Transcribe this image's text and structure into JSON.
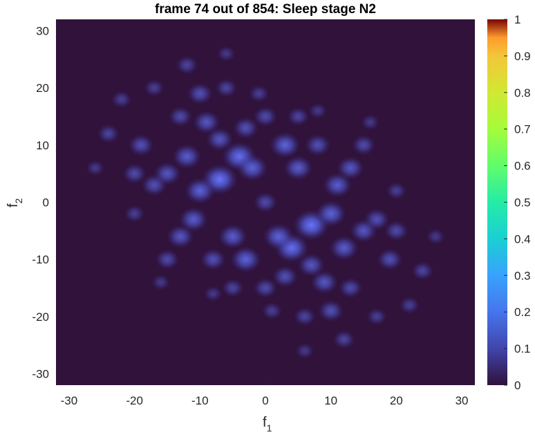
{
  "chart_data": {
    "type": "heatmap",
    "title": "frame 74 out of 854: Sleep stage N2",
    "xlabel": "f",
    "xlabel_subscript": "1",
    "ylabel": "f",
    "ylabel_subscript": "2",
    "xlim": [
      -32,
      32
    ],
    "ylim": [
      -32,
      32
    ],
    "xticks": [
      -30,
      -20,
      -10,
      0,
      10,
      20,
      30
    ],
    "yticks": [
      30,
      20,
      10,
      0,
      -10,
      -20,
      -30
    ],
    "xtick_labels": [
      "-30",
      "-20",
      "-10",
      "0",
      "10",
      "20",
      "30"
    ],
    "ytick_labels": [
      "30",
      "20",
      "10",
      "0",
      "-10",
      "-20",
      "-30"
    ],
    "colorbar": {
      "colormap": "turbo",
      "range": [
        0,
        1
      ],
      "ticks": [
        0,
        0.1,
        0.2,
        0.3,
        0.4,
        0.5,
        0.6,
        0.7,
        0.8,
        0.9,
        1
      ],
      "tick_labels": [
        "0",
        "0.1",
        "0.2",
        "0.3",
        "0.4",
        "0.5",
        "0.6",
        "0.7",
        "0.8",
        "0.9",
        "1"
      ]
    },
    "background_value": 0,
    "approx_peak_value": 0.13,
    "blobs": [
      {
        "x": -7,
        "y": 4,
        "value": 0.13
      },
      {
        "x": 7,
        "y": -4,
        "value": 0.13
      },
      {
        "x": -4,
        "y": 8,
        "value": 0.12
      },
      {
        "x": 4,
        "y": -8,
        "value": 0.12
      },
      {
        "x": 0,
        "y": 0,
        "value": 0.06
      },
      {
        "x": -2,
        "y": 6,
        "value": 0.1
      },
      {
        "x": 2,
        "y": -6,
        "value": 0.1
      },
      {
        "x": -10,
        "y": 2,
        "value": 0.1
      },
      {
        "x": 10,
        "y": -2,
        "value": 0.1
      },
      {
        "x": 3,
        "y": 10,
        "value": 0.1
      },
      {
        "x": -3,
        "y": -10,
        "value": 0.1
      },
      {
        "x": -12,
        "y": 8,
        "value": 0.09
      },
      {
        "x": 12,
        "y": -8,
        "value": 0.09
      },
      {
        "x": -11,
        "y": -3,
        "value": 0.09
      },
      {
        "x": 11,
        "y": 3,
        "value": 0.09
      },
      {
        "x": -5,
        "y": -6,
        "value": 0.09
      },
      {
        "x": 5,
        "y": 6,
        "value": 0.09
      },
      {
        "x": -9,
        "y": 14,
        "value": 0.08
      },
      {
        "x": 9,
        "y": -14,
        "value": 0.08
      },
      {
        "x": -15,
        "y": 5,
        "value": 0.08
      },
      {
        "x": 15,
        "y": -5,
        "value": 0.08
      },
      {
        "x": 13,
        "y": 6,
        "value": 0.08
      },
      {
        "x": -13,
        "y": -6,
        "value": 0.08
      },
      {
        "x": -7,
        "y": 11,
        "value": 0.08
      },
      {
        "x": 7,
        "y": -11,
        "value": 0.08
      },
      {
        "x": -3,
        "y": 13,
        "value": 0.07
      },
      {
        "x": 3,
        "y": -13,
        "value": 0.07
      },
      {
        "x": 8,
        "y": 10,
        "value": 0.07
      },
      {
        "x": -8,
        "y": -10,
        "value": 0.07
      },
      {
        "x": -19,
        "y": 10,
        "value": 0.07
      },
      {
        "x": 19,
        "y": -10,
        "value": 0.07
      },
      {
        "x": -10,
        "y": 19,
        "value": 0.07
      },
      {
        "x": 10,
        "y": -19,
        "value": 0.07
      },
      {
        "x": -17,
        "y": 3,
        "value": 0.07
      },
      {
        "x": 17,
        "y": -3,
        "value": 0.07
      },
      {
        "x": 0,
        "y": 15,
        "value": 0.06
      },
      {
        "x": 0,
        "y": -15,
        "value": 0.06
      },
      {
        "x": -13,
        "y": 15,
        "value": 0.06
      },
      {
        "x": 13,
        "y": -15,
        "value": 0.06
      },
      {
        "x": -20,
        "y": 5,
        "value": 0.06
      },
      {
        "x": 20,
        "y": -5,
        "value": 0.06
      },
      {
        "x": 15,
        "y": 10,
        "value": 0.06
      },
      {
        "x": -15,
        "y": -10,
        "value": 0.06
      },
      {
        "x": -6,
        "y": 20,
        "value": 0.05
      },
      {
        "x": 6,
        "y": -20,
        "value": 0.05
      },
      {
        "x": 5,
        "y": 15,
        "value": 0.05
      },
      {
        "x": -5,
        "y": -15,
        "value": 0.05
      },
      {
        "x": -24,
        "y": 12,
        "value": 0.05
      },
      {
        "x": 24,
        "y": -12,
        "value": 0.05
      },
      {
        "x": -12,
        "y": 24,
        "value": 0.05
      },
      {
        "x": 12,
        "y": -24,
        "value": 0.05
      },
      {
        "x": 22,
        "y": -18,
        "value": 0.04
      },
      {
        "x": -22,
        "y": 18,
        "value": 0.04
      },
      {
        "x": -17,
        "y": 20,
        "value": 0.04
      },
      {
        "x": 17,
        "y": -20,
        "value": 0.04
      },
      {
        "x": 20,
        "y": 2,
        "value": 0.04
      },
      {
        "x": -20,
        "y": -2,
        "value": 0.04
      },
      {
        "x": -1,
        "y": 19,
        "value": 0.04
      },
      {
        "x": 1,
        "y": -19,
        "value": 0.04
      },
      {
        "x": 8,
        "y": 16,
        "value": 0.03
      },
      {
        "x": -8,
        "y": -16,
        "value": 0.03
      },
      {
        "x": -26,
        "y": 6,
        "value": 0.03
      },
      {
        "x": 26,
        "y": -6,
        "value": 0.03
      },
      {
        "x": -6,
        "y": 26,
        "value": 0.03
      },
      {
        "x": 6,
        "y": -26,
        "value": 0.03
      },
      {
        "x": 16,
        "y": 14,
        "value": 0.03
      },
      {
        "x": -16,
        "y": -14,
        "value": 0.03
      }
    ]
  }
}
